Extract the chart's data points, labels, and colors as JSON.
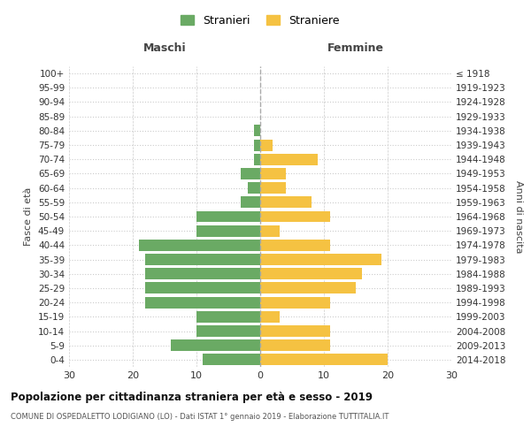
{
  "age_groups": [
    "100+",
    "95-99",
    "90-94",
    "85-89",
    "80-84",
    "75-79",
    "70-74",
    "65-69",
    "60-64",
    "55-59",
    "50-54",
    "45-49",
    "40-44",
    "35-39",
    "30-34",
    "25-29",
    "20-24",
    "15-19",
    "10-14",
    "5-9",
    "0-4"
  ],
  "birth_years": [
    "≤ 1918",
    "1919-1923",
    "1924-1928",
    "1929-1933",
    "1934-1938",
    "1939-1943",
    "1944-1948",
    "1949-1953",
    "1954-1958",
    "1959-1963",
    "1964-1968",
    "1969-1973",
    "1974-1978",
    "1979-1983",
    "1984-1988",
    "1989-1993",
    "1994-1998",
    "1999-2003",
    "2004-2008",
    "2009-2013",
    "2014-2018"
  ],
  "males": [
    0,
    0,
    0,
    0,
    1,
    1,
    1,
    3,
    2,
    3,
    10,
    10,
    19,
    18,
    18,
    18,
    18,
    10,
    10,
    14,
    9
  ],
  "females": [
    0,
    0,
    0,
    0,
    0,
    2,
    9,
    4,
    4,
    8,
    11,
    3,
    11,
    19,
    16,
    15,
    11,
    3,
    11,
    11,
    20
  ],
  "male_color": "#6aaa64",
  "female_color": "#f5c242",
  "background_color": "#ffffff",
  "grid_color": "#cccccc",
  "title": "Popolazione per cittadinanza straniera per età e sesso - 2019",
  "subtitle": "COMUNE DI OSPEDALETTO LODIGIANO (LO) - Dati ISTAT 1° gennaio 2019 - Elaborazione TUTTITALIA.IT",
  "xlabel_left": "Maschi",
  "xlabel_right": "Femmine",
  "ylabel_left": "Fasce di età",
  "ylabel_right": "Anni di nascita",
  "xlim": 30,
  "legend_labels": [
    "Stranieri",
    "Straniere"
  ],
  "bar_height": 0.8
}
